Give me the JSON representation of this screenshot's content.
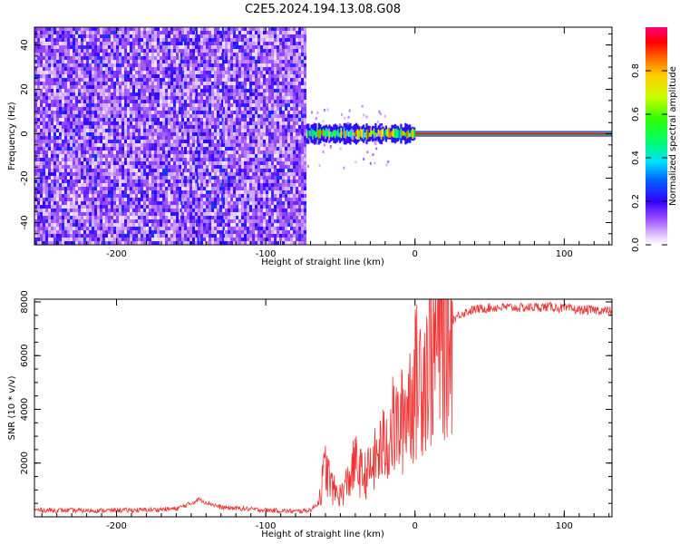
{
  "title": "C2E5.2024.194.13.08.G08",
  "chart_data": [
    {
      "type": "heatmap",
      "xlabel": "Height of straight line (km)",
      "ylabel": "Frequency (Hz)",
      "xlim": [
        -255,
        132
      ],
      "ylim": [
        -50,
        48
      ],
      "xticks": [
        -200,
        -100,
        0,
        100
      ],
      "yticks": [
        -40,
        -20,
        0,
        20,
        40
      ],
      "colorbar": {
        "label": "Normalized spectral amplitude",
        "range": [
          0,
          1
        ],
        "ticks": [
          0.0,
          0.2,
          0.4,
          0.6,
          0.8
        ]
      },
      "regions": [
        {
          "x_range": [
            -255,
            -73
          ],
          "description": "broadband noise, amplitude ~0.05-0.25"
        },
        {
          "x_range": [
            -73,
            0
          ],
          "freq_hz": 0,
          "amplitude_range": [
            0.3,
            0.9
          ]
        },
        {
          "x_range": [
            0,
            132
          ],
          "freq_hz": 0,
          "amplitude": 0.95
        }
      ]
    },
    {
      "type": "line",
      "xlabel": "Height of straight line (km)",
      "ylabel": "SNR (10 * v/v)",
      "xlim": [
        -255,
        132
      ],
      "ylim": [
        0,
        8100
      ],
      "xticks": [
        -200,
        -100,
        0,
        100
      ],
      "yticks": [
        2000,
        4000,
        6000,
        8000
      ],
      "color": "#ee3333",
      "series": [
        {
          "x": [
            -255,
            -220,
            -180,
            -160,
            -150,
            -145,
            -130,
            -100,
            -80,
            -70,
            -65,
            -62,
            -60,
            -58,
            -55,
            -50,
            -45,
            -40,
            -35,
            -30,
            -25,
            -20,
            -15,
            -10,
            -5,
            0,
            5,
            10,
            15,
            20,
            25,
            30,
            40,
            50,
            60,
            70,
            80,
            90,
            100,
            110,
            120,
            132
          ],
          "values": [
            250,
            230,
            250,
            300,
            500,
            650,
            350,
            250,
            200,
            250,
            500,
            1300,
            1900,
            1500,
            1000,
            800,
            1300,
            2000,
            1500,
            1700,
            2300,
            2700,
            3300,
            3300,
            4300,
            4900,
            5500,
            6000,
            6400,
            6900,
            7300,
            7550,
            7720,
            7780,
            7800,
            7780,
            7800,
            7820,
            7760,
            7700,
            7700,
            7650
          ]
        }
      ]
    }
  ]
}
